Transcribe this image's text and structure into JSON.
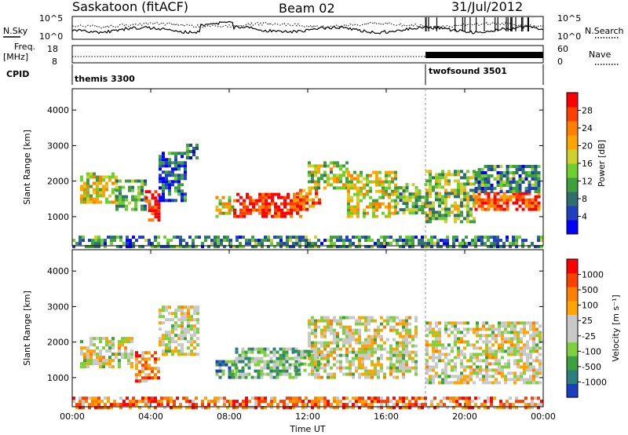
{
  "header": {
    "station": "Saskatoon (fitACF)",
    "beam": "Beam 02",
    "date": "31/Jul/2012"
  },
  "top_panels": {
    "nsky_label": "N.Sky",
    "nsearch_label": "N.Search",
    "nsky_ticks": [
      "10^5",
      "10^0"
    ],
    "nsearch_ticks": [
      "10^5",
      "10^0"
    ],
    "freq_label_line1": "Freq.",
    "freq_label_line2": "[MHz]",
    "freq_ticks": [
      "18",
      "8"
    ],
    "nave_label": "Nave",
    "nave_ticks": [
      "60",
      "0"
    ],
    "cpid_label": "CPID",
    "cpid_segments": [
      {
        "name": "themis 3300",
        "start_hour": 0,
        "end_hour": 18
      },
      {
        "name": "twofsound 3501",
        "start_hour": 18,
        "end_hour": 24
      }
    ]
  },
  "chart_data": [
    {
      "type": "heatmap",
      "panel": "power",
      "xlabel": "",
      "ylabel": "Slant Range [km]",
      "xlim": [
        0,
        24
      ],
      "ylim": [
        180,
        4600
      ],
      "yticks": [
        "1000",
        "2000",
        "3000",
        "4000"
      ],
      "colorbar": {
        "label": "Power [dB]",
        "ticks": [
          "4",
          "8",
          "12",
          "16",
          "20",
          "24",
          "28"
        ],
        "colors": [
          "#0000ff",
          "#1f3fbf",
          "#2f6f6f",
          "#3f9f3f",
          "#6fcf2f",
          "#cfcf2f",
          "#ffa500",
          "#ff7f00",
          "#ff4000",
          "#ff0000"
        ]
      },
      "regions": [
        {
          "t0": 0.4,
          "t1": 2.2,
          "r0": 1450,
          "r1": 2300,
          "level": 0.55
        },
        {
          "t0": 2.2,
          "t1": 3.7,
          "r0": 1250,
          "r1": 2050,
          "level": 0.35
        },
        {
          "t0": 3.7,
          "t1": 4.4,
          "r0": 950,
          "r1": 1800,
          "level": 0.95
        },
        {
          "t0": 4.4,
          "t1": 5.8,
          "r0": 1500,
          "r1": 2900,
          "level": 0.2
        },
        {
          "t0": 5.8,
          "t1": 6.3,
          "r0": 2700,
          "r1": 3100,
          "level": 0.25
        },
        {
          "t0": 7.3,
          "t1": 8.2,
          "r0": 1050,
          "r1": 1600,
          "level": 0.6
        },
        {
          "t0": 8.2,
          "t1": 11.6,
          "r0": 1050,
          "r1": 1750,
          "level": 0.92
        },
        {
          "t0": 11.4,
          "t1": 12.6,
          "r0": 1250,
          "r1": 1850,
          "level": 0.75
        },
        {
          "t0": 12.0,
          "t1": 14.0,
          "r0": 1850,
          "r1": 2600,
          "level": 0.5
        },
        {
          "t0": 14.0,
          "t1": 16.5,
          "r0": 1050,
          "r1": 2300,
          "level": 0.55
        },
        {
          "t0": 16.5,
          "t1": 18.0,
          "r0": 1150,
          "r1": 2000,
          "level": 0.4
        },
        {
          "t0": 18.0,
          "t1": 20.5,
          "r0": 900,
          "r1": 2400,
          "level": 0.45
        },
        {
          "t0": 20.5,
          "t1": 23.8,
          "r0": 1250,
          "r1": 1750,
          "level": 0.85
        },
        {
          "t0": 20.5,
          "t1": 23.8,
          "r0": 1750,
          "r1": 2500,
          "level": 0.3
        },
        {
          "t0": 0.0,
          "t1": 24.0,
          "r0": 200,
          "r1": 500,
          "level": 0.3
        }
      ]
    },
    {
      "type": "heatmap",
      "panel": "velocity",
      "xlabel": "Time UT",
      "ylabel": "Slant Range [km]",
      "xlim": [
        0,
        24
      ],
      "ylim": [
        180,
        4600
      ],
      "xticks": [
        "00:00",
        "04:00",
        "08:00",
        "12:00",
        "16:00",
        "20:00",
        "00:00"
      ],
      "yticks": [
        "1000",
        "2000",
        "3000",
        "4000"
      ],
      "colorbar": {
        "label": "Velocity [m s⁻¹]",
        "ticks": [
          "1000",
          "500",
          "100",
          "25",
          "-25",
          "-100",
          "-500",
          "-1000"
        ],
        "colors": [
          "#1a3fbf",
          "#2f7f7f",
          "#3f9f3f",
          "#7fcf3f",
          "#c8c8c8",
          "#c8c8c8",
          "#ffa500",
          "#ff7f00",
          "#ff4000",
          "#ff0000"
        ]
      },
      "regions": [
        {
          "t0": 0.4,
          "t1": 3.0,
          "r0": 1350,
          "r1": 2200,
          "level": 0.5
        },
        {
          "t0": 3.2,
          "t1": 4.4,
          "r0": 950,
          "r1": 1800,
          "level": 0.75
        },
        {
          "t0": 4.4,
          "t1": 6.4,
          "r0": 1700,
          "r1": 3100,
          "level": 0.5
        },
        {
          "t0": 7.3,
          "t1": 8.3,
          "r0": 1050,
          "r1": 1550,
          "level": 0.2
        },
        {
          "t0": 8.3,
          "t1": 11.6,
          "r0": 1050,
          "r1": 1850,
          "level": 0.35
        },
        {
          "t0": 11.3,
          "t1": 12.6,
          "r0": 1250,
          "r1": 1850,
          "level": 0.3
        },
        {
          "t0": 12.0,
          "t1": 17.5,
          "r0": 1050,
          "r1": 2800,
          "level": 0.5
        },
        {
          "t0": 18.0,
          "t1": 23.8,
          "r0": 900,
          "r1": 2600,
          "level": 0.5
        },
        {
          "t0": 0.0,
          "t1": 24.0,
          "r0": 200,
          "r1": 500,
          "level": 0.75
        }
      ]
    }
  ]
}
